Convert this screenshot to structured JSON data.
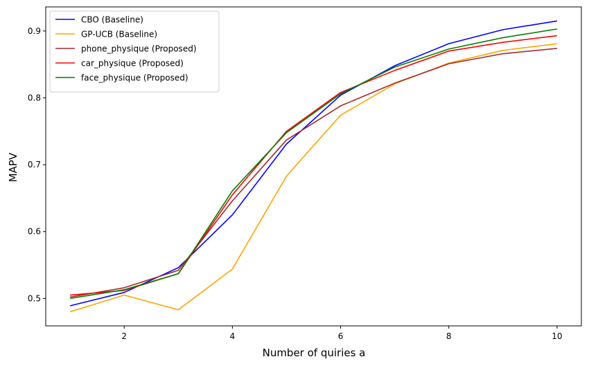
{
  "chart_data": {
    "type": "line",
    "title": "",
    "xlabel": "Number of quiries a",
    "ylabel": "MAPV",
    "x": [
      1,
      2,
      3,
      4,
      5,
      6,
      7,
      8,
      9,
      10
    ],
    "xlim": [
      0.55,
      10.45
    ],
    "ylim": [
      0.459,
      0.936
    ],
    "xticks": [
      2,
      4,
      6,
      8,
      10
    ],
    "yticks": [
      0.5,
      0.6,
      0.7,
      0.8,
      0.9
    ],
    "ytick_labels": [
      "0.5",
      "0.6",
      "0.7",
      "0.8",
      "0.9"
    ],
    "grid": false,
    "legend_position": "top-left",
    "series": [
      {
        "name": "CBO (Baseline)",
        "color": "#0000ff",
        "values": [
          0.489,
          0.509,
          0.546,
          0.625,
          0.731,
          0.804,
          0.848,
          0.881,
          0.902,
          0.915
        ]
      },
      {
        "name": "GP-UCB (Baseline)",
        "color": "#ffa500",
        "values": [
          0.48,
          0.505,
          0.483,
          0.544,
          0.683,
          0.774,
          0.821,
          0.852,
          0.871,
          0.881
        ]
      },
      {
        "name": "phone_physique (Proposed)",
        "color": "#a52a2a",
        "values": [
          0.502,
          0.516,
          0.542,
          0.646,
          0.737,
          0.788,
          0.822,
          0.851,
          0.866,
          0.874
        ]
      },
      {
        "name": "car_physique (Proposed)",
        "color": "#ff0000",
        "values": [
          0.505,
          0.512,
          0.537,
          0.655,
          0.75,
          0.808,
          0.841,
          0.87,
          0.883,
          0.893
        ]
      },
      {
        "name": "face_physique (Proposed)",
        "color": "#008000",
        "values": [
          0.5,
          0.513,
          0.537,
          0.661,
          0.748,
          0.806,
          0.846,
          0.873,
          0.89,
          0.903
        ]
      }
    ]
  }
}
